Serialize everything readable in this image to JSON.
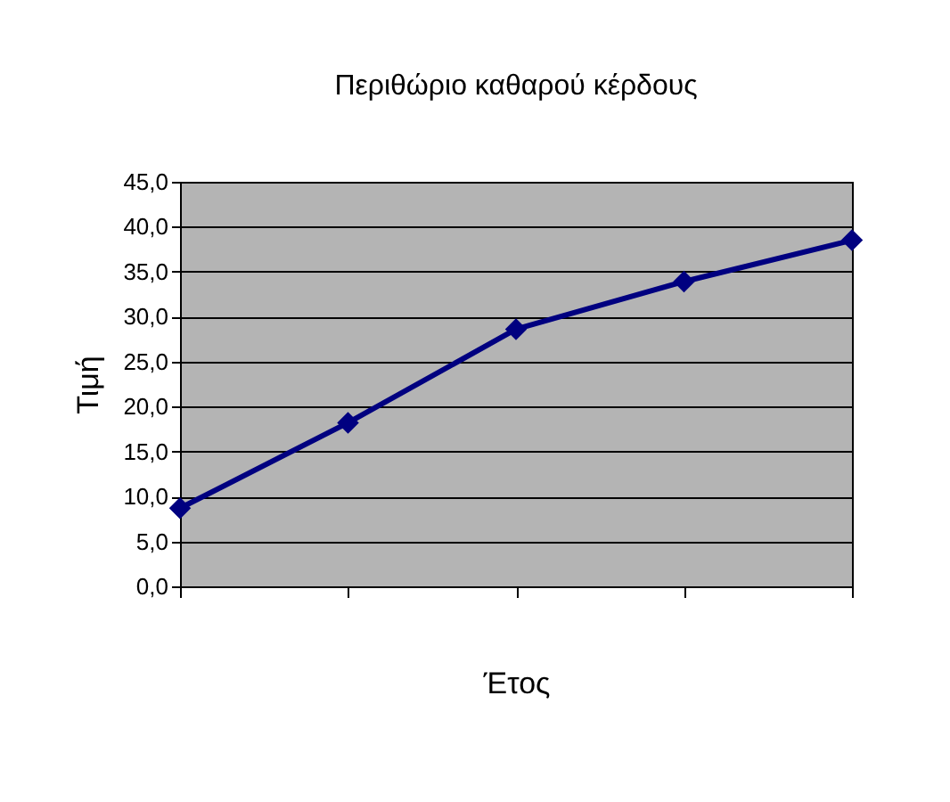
{
  "chart_data": {
    "type": "line",
    "title": "Περιθώριο καθαρού κέρδους",
    "xlabel": "Έτος",
    "ylabel": "Τιμή",
    "categories": [
      null,
      null,
      null,
      null,
      null
    ],
    "series": [
      {
        "color": "#000080",
        "values": [
          8.7,
          18.2,
          28.6,
          33.9,
          38.5
        ]
      }
    ],
    "ylim": [
      0,
      45
    ],
    "yticks": [
      {
        "value": 0,
        "label": "0,0"
      },
      {
        "value": 5,
        "label": "5,0"
      },
      {
        "value": 10,
        "label": "10,0"
      },
      {
        "value": 15,
        "label": "15,0"
      },
      {
        "value": 20,
        "label": "20,0"
      },
      {
        "value": 25,
        "label": "25,0"
      },
      {
        "value": 30,
        "label": "30,0"
      },
      {
        "value": 35,
        "label": "35,0"
      },
      {
        "value": 40,
        "label": "40,0"
      },
      {
        "value": 45,
        "label": "45,0"
      }
    ],
    "grid": "y",
    "marker": "diamond",
    "line_style": "solid",
    "tick_labels": "y"
  }
}
